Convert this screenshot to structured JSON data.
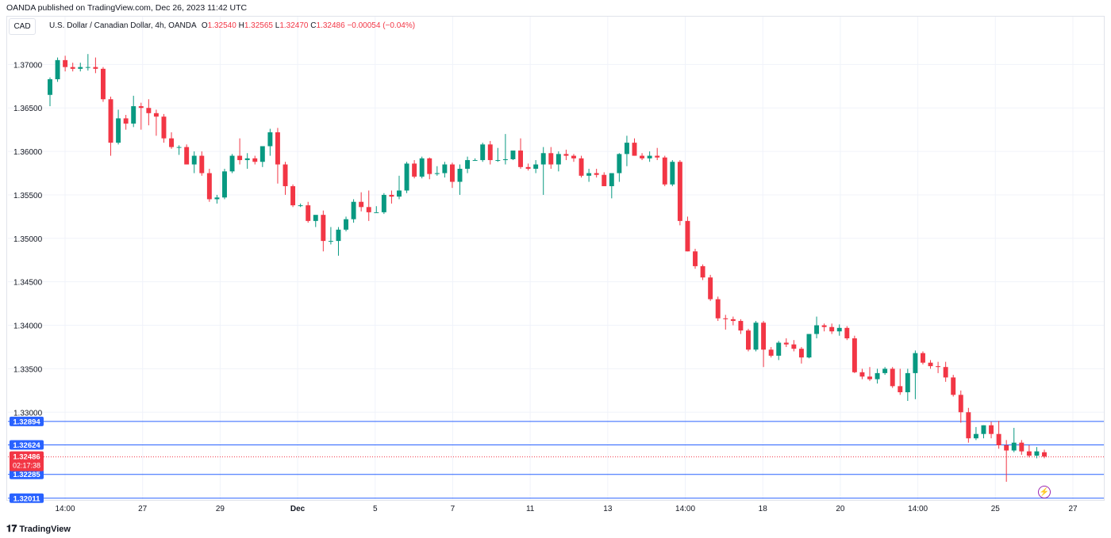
{
  "header": {
    "published": "OANDA published on TradingView.com, Dec 26, 2023 11:42 UTC"
  },
  "symbol_box": "CAD",
  "legend": {
    "title": "U.S. Dollar / Canadian Dollar, 4h, OANDA",
    "o_label": "O",
    "o_value": "1.32540",
    "h_label": "H",
    "h_value": "1.32565",
    "l_label": "L",
    "l_value": "1.32470",
    "c_label": "C",
    "c_value": "1.32486",
    "change": "−0.00054 (−0.04%)"
  },
  "footer": {
    "brand": "TradingView"
  },
  "colors": {
    "up": "#089981",
    "down": "#f23645",
    "hline": "#2962ff",
    "grid": "#f0f3fa",
    "text": "#131722"
  },
  "chart_data": {
    "type": "candlestick",
    "ylim": [
      1.32,
      1.3755
    ],
    "y_ticks": [
      "1.37000",
      "1.36500",
      "1.36000",
      "1.35500",
      "1.35000",
      "1.34500",
      "1.34000",
      "1.33500",
      "1.33000"
    ],
    "x_ticks": [
      "14:00",
      "27",
      "29",
      "Dec",
      "5",
      "7",
      "11",
      "13",
      "14:00",
      "18",
      "20",
      "14:00",
      "25",
      "27"
    ],
    "horizontal_lines": [
      1.32894,
      1.32624,
      1.32285,
      1.32011
    ],
    "price_labels": [
      {
        "text": "1.32894",
        "value": 1.32894
      },
      {
        "text": "1.32624",
        "value": 1.32624
      },
      {
        "text": "1.32285",
        "value": 1.32285
      },
      {
        "text": "1.32011",
        "value": 1.32011
      }
    ],
    "current_price": {
      "text": "1.32486",
      "countdown": "02:17:38",
      "value": 1.32486
    },
    "candles": [
      [
        1.3665,
        1.3685,
        1.3652,
        1.3683
      ],
      [
        1.3683,
        1.3708,
        1.368,
        1.3705
      ],
      [
        1.3705,
        1.371,
        1.3692,
        1.3697
      ],
      [
        1.3697,
        1.3702,
        1.3692,
        1.3695
      ],
      [
        1.3695,
        1.3702,
        1.3692,
        1.3697
      ],
      [
        1.3697,
        1.3712,
        1.3693,
        1.3697
      ],
      [
        1.3697,
        1.3708,
        1.369,
        1.3695
      ],
      [
        1.3695,
        1.3697,
        1.3657,
        1.366
      ],
      [
        1.366,
        1.3663,
        1.3595,
        1.361
      ],
      [
        1.361,
        1.3648,
        1.3608,
        1.3638
      ],
      [
        1.3638,
        1.3642,
        1.3625,
        1.3632
      ],
      [
        1.3632,
        1.3664,
        1.3628,
        1.3652
      ],
      [
        1.3652,
        1.3656,
        1.3625,
        1.365
      ],
      [
        1.365,
        1.366,
        1.363,
        1.3644
      ],
      [
        1.3644,
        1.3648,
        1.3618,
        1.364
      ],
      [
        1.364,
        1.3643,
        1.361,
        1.3615
      ],
      [
        1.3615,
        1.3622,
        1.3603,
        1.3605
      ],
      [
        1.3605,
        1.3607,
        1.3596,
        1.3605
      ],
      [
        1.3605,
        1.3608,
        1.3585,
        1.3585
      ],
      [
        1.3585,
        1.36,
        1.3575,
        1.3595
      ],
      [
        1.3595,
        1.36,
        1.3572,
        1.3575
      ],
      [
        1.3575,
        1.358,
        1.3542,
        1.3545
      ],
      [
        1.3545,
        1.355,
        1.354,
        1.3547
      ],
      [
        1.3547,
        1.358,
        1.3545,
        1.3577
      ],
      [
        1.3577,
        1.3597,
        1.3575,
        1.3595
      ],
      [
        1.3595,
        1.3615,
        1.3585,
        1.359
      ],
      [
        1.359,
        1.3598,
        1.358,
        1.3592
      ],
      [
        1.3592,
        1.3595,
        1.3585,
        1.3588
      ],
      [
        1.3588,
        1.3606,
        1.3582,
        1.3606
      ],
      [
        1.3606,
        1.3626,
        1.3595,
        1.3622
      ],
      [
        1.3622,
        1.3627,
        1.3563,
        1.3585
      ],
      [
        1.3585,
        1.3588,
        1.355,
        1.356
      ],
      [
        1.356,
        1.3562,
        1.3536,
        1.3538
      ],
      [
        1.3538,
        1.354,
        1.3536,
        1.3538
      ],
      [
        1.3538,
        1.3542,
        1.3518,
        1.352
      ],
      [
        1.352,
        1.3525,
        1.3513,
        1.3527
      ],
      [
        1.3527,
        1.3532,
        1.3485,
        1.3497
      ],
      [
        1.3497,
        1.3513,
        1.3493,
        1.3497
      ],
      [
        1.3497,
        1.3513,
        1.348,
        1.351
      ],
      [
        1.351,
        1.3525,
        1.3508,
        1.3522
      ],
      [
        1.3522,
        1.3545,
        1.3518,
        1.3542
      ],
      [
        1.3542,
        1.3553,
        1.3531,
        1.3536
      ],
      [
        1.3536,
        1.3555,
        1.352,
        1.353
      ],
      [
        1.353,
        1.3537,
        1.353,
        1.353
      ],
      [
        1.353,
        1.3552,
        1.3528,
        1.355
      ],
      [
        1.355,
        1.3555,
        1.354,
        1.3548
      ],
      [
        1.3548,
        1.3572,
        1.3545,
        1.3555
      ],
      [
        1.3555,
        1.3588,
        1.3552,
        1.3586
      ],
      [
        1.3586,
        1.359,
        1.3569,
        1.3571
      ],
      [
        1.3571,
        1.3594,
        1.3569,
        1.3592
      ],
      [
        1.3592,
        1.3593,
        1.3568,
        1.3574
      ],
      [
        1.3574,
        1.3583,
        1.3572,
        1.3575
      ],
      [
        1.3575,
        1.3588,
        1.357,
        1.3585
      ],
      [
        1.3585,
        1.3587,
        1.3558,
        1.3565
      ],
      [
        1.3565,
        1.3585,
        1.355,
        1.358
      ],
      [
        1.358,
        1.3594,
        1.3575,
        1.359
      ],
      [
        1.359,
        1.3592,
        1.359,
        1.359
      ],
      [
        1.359,
        1.361,
        1.3588,
        1.3608
      ],
      [
        1.3608,
        1.3612,
        1.3585,
        1.359
      ],
      [
        1.359,
        1.3604,
        1.3588,
        1.359
      ],
      [
        1.359,
        1.362,
        1.3585,
        1.3591
      ],
      [
        1.3591,
        1.36,
        1.359,
        1.3601
      ],
      [
        1.3601,
        1.3615,
        1.358,
        1.3582
      ],
      [
        1.3582,
        1.3586,
        1.3578,
        1.358
      ],
      [
        1.358,
        1.359,
        1.3575,
        1.3585
      ],
      [
        1.3585,
        1.3605,
        1.355,
        1.3598
      ],
      [
        1.3598,
        1.3605,
        1.358,
        1.3585
      ],
      [
        1.3585,
        1.36,
        1.3577,
        1.3597
      ],
      [
        1.3597,
        1.3602,
        1.359,
        1.3595
      ],
      [
        1.3595,
        1.3597,
        1.3588,
        1.3592
      ],
      [
        1.3592,
        1.3595,
        1.357,
        1.3572
      ],
      [
        1.3572,
        1.358,
        1.3565,
        1.3575
      ],
      [
        1.3575,
        1.358,
        1.357,
        1.3573
      ],
      [
        1.3573,
        1.3576,
        1.356,
        1.356
      ],
      [
        1.356,
        1.3575,
        1.3546,
        1.3575
      ],
      [
        1.3575,
        1.3598,
        1.3565,
        1.3597
      ],
      [
        1.3597,
        1.3618,
        1.3583,
        1.361
      ],
      [
        1.361,
        1.3615,
        1.3595,
        1.3595
      ],
      [
        1.3595,
        1.3598,
        1.359,
        1.3592
      ],
      [
        1.3592,
        1.36,
        1.3588,
        1.3595
      ],
      [
        1.3595,
        1.3604,
        1.359,
        1.3593
      ],
      [
        1.3593,
        1.3595,
        1.356,
        1.3562
      ],
      [
        1.3562,
        1.359,
        1.356,
        1.3588
      ],
      [
        1.3588,
        1.359,
        1.3515,
        1.352
      ],
      [
        1.352,
        1.3525,
        1.3485,
        1.3485
      ],
      [
        1.3485,
        1.3488,
        1.3465,
        1.3468
      ],
      [
        1.3468,
        1.347,
        1.3452,
        1.3455
      ],
      [
        1.3455,
        1.3458,
        1.3428,
        1.343
      ],
      [
        1.343,
        1.3433,
        1.3405,
        1.3408
      ],
      [
        1.3408,
        1.3412,
        1.3395,
        1.3407
      ],
      [
        1.3407,
        1.341,
        1.34,
        1.3405
      ],
      [
        1.3405,
        1.3407,
        1.339,
        1.3394
      ],
      [
        1.3394,
        1.3396,
        1.337,
        1.3372
      ],
      [
        1.3372,
        1.3405,
        1.337,
        1.3403
      ],
      [
        1.3403,
        1.3405,
        1.3352,
        1.3372
      ],
      [
        1.3372,
        1.3375,
        1.3363,
        1.3365
      ],
      [
        1.3365,
        1.3382,
        1.336,
        1.338
      ],
      [
        1.338,
        1.3385,
        1.3375,
        1.3378
      ],
      [
        1.3378,
        1.3383,
        1.337,
        1.3373
      ],
      [
        1.3373,
        1.3375,
        1.3356,
        1.3363
      ],
      [
        1.3363,
        1.339,
        1.3362,
        1.339
      ],
      [
        1.339,
        1.341,
        1.3385,
        1.34
      ],
      [
        1.34,
        1.3402,
        1.3393,
        1.3398
      ],
      [
        1.3398,
        1.3402,
        1.339,
        1.3393
      ],
      [
        1.3393,
        1.3401,
        1.3388,
        1.3397
      ],
      [
        1.3397,
        1.3399,
        1.3383,
        1.3385
      ],
      [
        1.3385,
        1.3388,
        1.3345,
        1.3346
      ],
      [
        1.3346,
        1.335,
        1.3338,
        1.3341
      ],
      [
        1.3341,
        1.3352,
        1.3336,
        1.3338
      ],
      [
        1.3338,
        1.335,
        1.3333,
        1.3345
      ],
      [
        1.3345,
        1.3352,
        1.3343,
        1.335
      ],
      [
        1.335,
        1.3352,
        1.3328,
        1.333
      ],
      [
        1.333,
        1.335,
        1.332,
        1.3323
      ],
      [
        1.3323,
        1.335,
        1.3313,
        1.3345
      ],
      [
        1.3345,
        1.3371,
        1.3315,
        1.3368
      ],
      [
        1.3368,
        1.337,
        1.3355,
        1.3357
      ],
      [
        1.3357,
        1.336,
        1.335,
        1.3353
      ],
      [
        1.3353,
        1.3358,
        1.3345,
        1.3352
      ],
      [
        1.3352,
        1.3358,
        1.3335,
        1.334
      ],
      [
        1.334,
        1.3343,
        1.3318,
        1.332
      ],
      [
        1.332,
        1.3325,
        1.3288,
        1.33
      ],
      [
        1.33,
        1.3305,
        1.3265,
        1.327
      ],
      [
        1.327,
        1.3283,
        1.3268,
        1.3275
      ],
      [
        1.3275,
        1.3285,
        1.327,
        1.3285
      ],
      [
        1.3285,
        1.3289,
        1.327,
        1.3275
      ],
      [
        1.3275,
        1.329,
        1.3258,
        1.3262
      ],
      [
        1.3262,
        1.3268,
        1.322,
        1.3256
      ],
      [
        1.3256,
        1.3282,
        1.3254,
        1.3265
      ],
      [
        1.3265,
        1.3268,
        1.3251,
        1.3255
      ],
      [
        1.3255,
        1.3262,
        1.3248,
        1.325
      ],
      [
        1.325,
        1.326,
        1.3247,
        1.3255
      ],
      [
        1.3254,
        1.3257,
        1.3247,
        1.3249
      ]
    ]
  }
}
